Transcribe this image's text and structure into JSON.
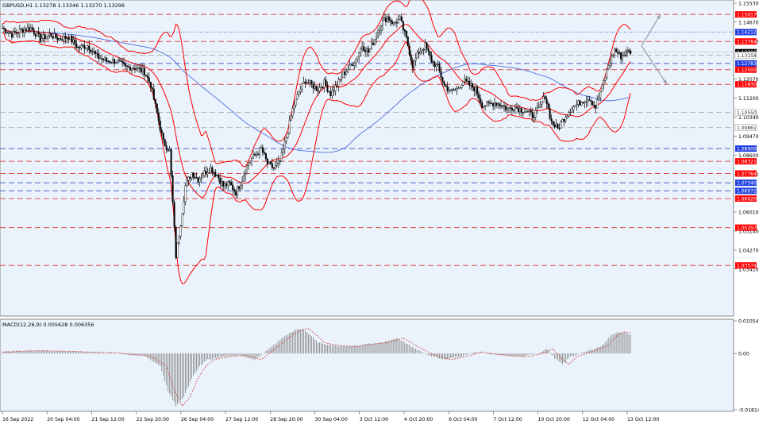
{
  "symbol_title": "GBPUSD,H1  1.13278 1.13346 1.13270 1.13296",
  "macd_title": "MACD(12,26,9) 0.005628 0.006356",
  "colors": {
    "background": "#ffffff",
    "plot_bg": "#eaf3fb",
    "candle": "#000000",
    "bollinger": "#ff0000",
    "ma_blue": "#3b5fe0",
    "red_level": "#e05050",
    "blue_level": "#4a64c8",
    "grey_level": "#b4b4b4",
    "price_badge": "#000000",
    "red_badge": "#ff0000",
    "blue_badge": "#1f3fe0",
    "macd_hist": "#8a8a8a",
    "macd_signal": "#d04040",
    "arrows": "#9a9aa8"
  },
  "chart_data": [
    {
      "type": "candlestick",
      "timeframe": "H1",
      "symbol": "GBPUSD",
      "ylim": [
        1.0141,
        1.1553
      ],
      "y_ticks": [
        "1.15530",
        "1.14670",
        "1.13790",
        "1.12070",
        "1.11200",
        "1.10340",
        "1.09470",
        "1.08600",
        "1.07730",
        "1.06010",
        "1.05140",
        "1.04270",
        "1.03410"
      ],
      "x_ticks": [
        "16 Sep 2022",
        "20 Sep 04:00",
        "21 Sep 12:00",
        "22 Sep 20:00",
        "26 Sep 04:00",
        "27 Sep 12:00",
        "28 Sep 20:00",
        "30 Sep 04:00",
        "3 Oct 12:00",
        "4 Oct 20:00",
        "6 Oct 04:00",
        "7 Oct 12:00",
        "10 Oct 20:00",
        "12 Oct 04:00",
        "13 Oct 12:00"
      ],
      "current_price": {
        "label": "1.13296",
        "value": 1.13296
      },
      "levels": [
        {
          "label": "1.15017",
          "value": 1.15017,
          "style": "red",
          "badge": "red"
        },
        {
          "label": "1.14212",
          "value": 1.14212,
          "style": "blue",
          "badge": "blue"
        },
        {
          "label": "1.13784",
          "value": 1.13784,
          "style": "red",
          "badge": "red"
        },
        {
          "label": "1.13158",
          "value": 1.13158,
          "style": "grey",
          "badge": "none"
        },
        {
          "label": "1.12783",
          "value": 1.12783,
          "style": "blue",
          "badge": "blue"
        },
        {
          "label": "1.12500",
          "value": 1.125,
          "style": "red",
          "badge": "red"
        },
        {
          "label": "1.11830",
          "value": 1.1183,
          "style": "red",
          "badge": "red"
        },
        {
          "label": "1.10550",
          "value": 1.1055,
          "style": "grey",
          "badge": "none"
        },
        {
          "label": "1.09861",
          "value": 1.09861,
          "style": "grey",
          "badge": "none"
        },
        {
          "label": "1.08900",
          "value": 1.089,
          "style": "blue",
          "badge": "blue"
        },
        {
          "label": "1.08321",
          "value": 1.08321,
          "style": "red",
          "badge": "red"
        },
        {
          "label": "1.07764",
          "value": 1.07764,
          "style": "red",
          "badge": "red"
        },
        {
          "label": "1.07340",
          "value": 1.0734,
          "style": "blue",
          "badge": "blue"
        },
        {
          "label": "1.06972",
          "value": 1.06972,
          "style": "blue",
          "badge": "blue"
        },
        {
          "label": "1.06620",
          "value": 1.0662,
          "style": "red",
          "badge": "red"
        },
        {
          "label": "1.05297",
          "value": 1.05297,
          "style": "red",
          "badge": "red"
        },
        {
          "label": "1.03574",
          "value": 1.03574,
          "style": "red",
          "badge": "red"
        }
      ],
      "price_path": [
        [
          0,
          1.144
        ],
        [
          6,
          1.141
        ],
        [
          12,
          1.143
        ],
        [
          18,
          1.144
        ],
        [
          24,
          1.139
        ],
        [
          30,
          1.141
        ],
        [
          36,
          1.139
        ],
        [
          42,
          1.14
        ],
        [
          48,
          1.135
        ],
        [
          54,
          1.136
        ],
        [
          60,
          1.131
        ],
        [
          66,
          1.129
        ],
        [
          72,
          1.129
        ],
        [
          78,
          1.126
        ],
        [
          84,
          1.126
        ],
        [
          90,
          1.124
        ],
        [
          94,
          1.118
        ],
        [
          98,
          1.105
        ],
        [
          102,
          1.092
        ],
        [
          106,
          1.088
        ],
        [
          110,
          1.04
        ],
        [
          113,
          1.055
        ],
        [
          116,
          1.072
        ],
        [
          120,
          1.078
        ],
        [
          124,
          1.075
        ],
        [
          128,
          1.078
        ],
        [
          132,
          1.08
        ],
        [
          136,
          1.077
        ],
        [
          140,
          1.072
        ],
        [
          144,
          1.073
        ],
        [
          148,
          1.069
        ],
        [
          152,
          1.075
        ],
        [
          156,
          1.083
        ],
        [
          160,
          1.086
        ],
        [
          164,
          1.089
        ],
        [
          168,
          1.082
        ],
        [
          172,
          1.08
        ],
        [
          176,
          1.083
        ],
        [
          180,
          1.094
        ],
        [
          184,
          1.107
        ],
        [
          188,
          1.115
        ],
        [
          192,
          1.12
        ],
        [
          196,
          1.118
        ],
        [
          200,
          1.116
        ],
        [
          204,
          1.119
        ],
        [
          208,
          1.114
        ],
        [
          212,
          1.118
        ],
        [
          216,
          1.123
        ],
        [
          220,
          1.126
        ],
        [
          224,
          1.13
        ],
        [
          228,
          1.136
        ],
        [
          232,
          1.133
        ],
        [
          236,
          1.139
        ],
        [
          240,
          1.146
        ],
        [
          244,
          1.149
        ],
        [
          248,
          1.146
        ],
        [
          252,
          1.148
        ],
        [
          256,
          1.139
        ],
        [
          260,
          1.127
        ],
        [
          264,
          1.133
        ],
        [
          268,
          1.136
        ],
        [
          272,
          1.129
        ],
        [
          276,
          1.126
        ],
        [
          280,
          1.118
        ],
        [
          284,
          1.115
        ],
        [
          288,
          1.116
        ],
        [
          292,
          1.12
        ],
        [
          296,
          1.118
        ],
        [
          300,
          1.116
        ],
        [
          304,
          1.109
        ],
        [
          308,
          1.109
        ],
        [
          312,
          1.11
        ],
        [
          316,
          1.109
        ],
        [
          320,
          1.107
        ],
        [
          324,
          1.108
        ],
        [
          328,
          1.107
        ],
        [
          332,
          1.106
        ],
        [
          336,
          1.104
        ],
        [
          340,
          1.107
        ],
        [
          344,
          1.113
        ],
        [
          348,
          1.101
        ],
        [
          352,
          1.098
        ],
        [
          356,
          1.103
        ],
        [
          360,
          1.107
        ],
        [
          364,
          1.109
        ],
        [
          368,
          1.111
        ],
        [
          372,
          1.112
        ],
        [
          376,
          1.108
        ],
        [
          380,
          1.117
        ],
        [
          384,
          1.127
        ],
        [
          388,
          1.134
        ],
        [
          392,
          1.131
        ],
        [
          396,
          1.133
        ],
        [
          398,
          1.133
        ]
      ],
      "indicators": [
        "Bollinger Bands",
        "Moving Average"
      ],
      "forecast_arrows": [
        {
          "direction": "up",
          "target": 1.15017
        },
        {
          "direction": "down",
          "target": 1.1183
        }
      ]
    },
    {
      "type": "bar",
      "name": "MACD(12,26,9)",
      "main": 0.005628,
      "signal": 0.006356,
      "ylim": [
        -0.018145,
        0.010545
      ],
      "y_ticks": [
        "0.010545",
        "0.00",
        "-0.018145"
      ],
      "histogram_path": [
        [
          0,
          0.0005
        ],
        [
          10,
          0.0008
        ],
        [
          20,
          0.0009
        ],
        [
          40,
          0.0007
        ],
        [
          60,
          0.0003
        ],
        [
          70,
          0.0002
        ],
        [
          80,
          -0.0004
        ],
        [
          90,
          -0.0008
        ],
        [
          100,
          -0.004
        ],
        [
          105,
          -0.012
        ],
        [
          110,
          -0.017
        ],
        [
          115,
          -0.014
        ],
        [
          120,
          -0.008
        ],
        [
          125,
          -0.004
        ],
        [
          130,
          -0.002
        ],
        [
          140,
          -0.001
        ],
        [
          150,
          -0.0006
        ],
        [
          160,
          -0.002
        ],
        [
          170,
          0.002
        ],
        [
          180,
          0.006
        ],
        [
          185,
          0.0075
        ],
        [
          190,
          0.008
        ],
        [
          195,
          0.006
        ],
        [
          200,
          0.0035
        ],
        [
          210,
          0.0025
        ],
        [
          220,
          0.0022
        ],
        [
          230,
          0.003
        ],
        [
          240,
          0.0035
        ],
        [
          245,
          0.0042
        ],
        [
          250,
          0.005
        ],
        [
          255,
          0.0035
        ],
        [
          260,
          0.002
        ],
        [
          270,
          -0.0005
        ],
        [
          280,
          -0.002
        ],
        [
          290,
          -0.001
        ],
        [
          300,
          0.0005
        ],
        [
          310,
          -0.0003
        ],
        [
          320,
          -0.0008
        ],
        [
          330,
          -0.001
        ],
        [
          340,
          0.0002
        ],
        [
          345,
          0.0015
        ],
        [
          350,
          -0.0015
        ],
        [
          355,
          -0.0035
        ],
        [
          360,
          -0.001
        ],
        [
          370,
          0.0006
        ],
        [
          380,
          0.0025
        ],
        [
          385,
          0.0055
        ],
        [
          390,
          0.007
        ],
        [
          395,
          0.0066
        ],
        [
          398,
          0.006
        ]
      ]
    }
  ]
}
